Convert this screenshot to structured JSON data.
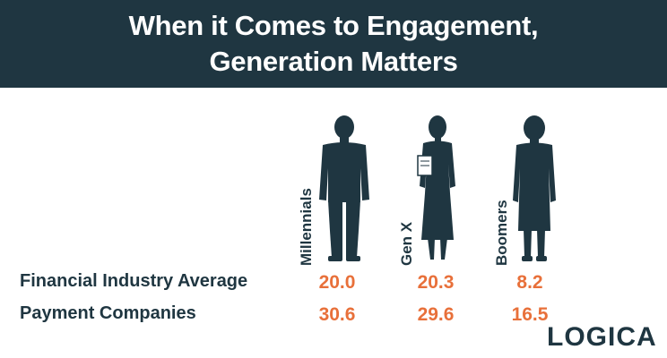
{
  "header": {
    "title_line1": "When it Comes to Engagement,",
    "title_line2": "Generation Matters"
  },
  "colors": {
    "banner": "#1f3641",
    "text": "#1f3641",
    "value": "#e8703a",
    "logo": "#1f3641"
  },
  "chart_data": {
    "type": "table",
    "title": "When it Comes to Engagement, Generation Matters",
    "columns": [
      "Millennials",
      "Gen X",
      "Boomers"
    ],
    "rows": [
      {
        "label": "Financial Industry Average",
        "values": [
          "20.0",
          "20.3",
          "8.2"
        ]
      },
      {
        "label": "Payment Companies",
        "values": [
          "30.6",
          "29.6",
          "16.5"
        ]
      }
    ],
    "icons": [
      "man-figure-icon",
      "woman-with-folder-figure-icon",
      "older-woman-figure-icon"
    ]
  },
  "logo": {
    "text": "LOGICA"
  }
}
